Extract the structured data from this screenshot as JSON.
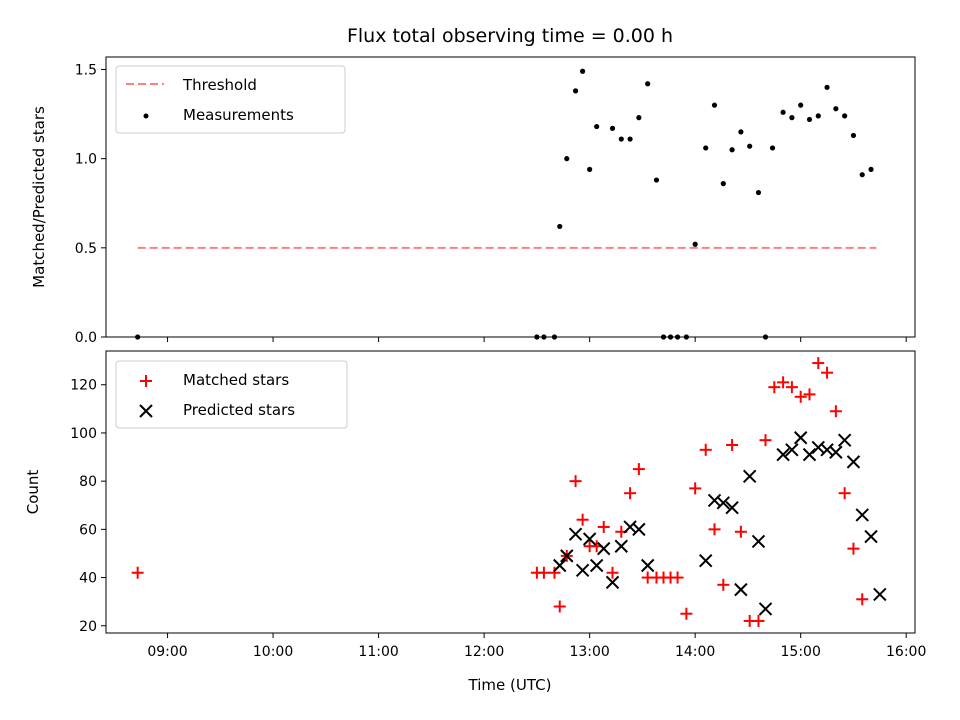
{
  "chart_data": [
    {
      "type": "scatter",
      "title": "Flux total observing time = 0.00 h",
      "ylabel": "Matched/Predicted stars",
      "ylim": [
        0,
        1.57
      ],
      "yticks": [
        0.0,
        0.5,
        1.0,
        1.5
      ],
      "ytick_labels": [
        "0.0",
        "0.5",
        "1.0",
        "1.5"
      ],
      "xlim": [
        "08:25",
        "16:05"
      ],
      "legend": {
        "placement": "top-left",
        "entries": [
          "Threshold",
          "Measurements"
        ]
      },
      "threshold": {
        "name": "Threshold",
        "value": 0.5,
        "x_start": "08:43",
        "x_end": "15:43",
        "color": "#ff7f7f",
        "style": "dashed"
      },
      "series": [
        {
          "name": "Measurements",
          "color": "#000000",
          "marker": "dot",
          "points": [
            [
              "08:43",
              0.0
            ],
            [
              "12:30",
              0.0
            ],
            [
              "12:34",
              0.0
            ],
            [
              "12:40",
              0.0
            ],
            [
              "12:43",
              0.62
            ],
            [
              "12:47",
              1.0
            ],
            [
              "12:52",
              1.38
            ],
            [
              "12:56",
              1.49
            ],
            [
              "13:00",
              0.94
            ],
            [
              "13:04",
              1.18
            ],
            [
              "13:13",
              1.17
            ],
            [
              "13:18",
              1.11
            ],
            [
              "13:23",
              1.11
            ],
            [
              "13:28",
              1.23
            ],
            [
              "13:33",
              1.42
            ],
            [
              "13:38",
              0.88
            ],
            [
              "13:42",
              0.0
            ],
            [
              "13:46",
              0.0
            ],
            [
              "13:50",
              0.0
            ],
            [
              "13:55",
              0.0
            ],
            [
              "14:00",
              0.52
            ],
            [
              "14:06",
              1.06
            ],
            [
              "14:11",
              1.3
            ],
            [
              "14:16",
              0.86
            ],
            [
              "14:21",
              1.05
            ],
            [
              "14:26",
              1.15
            ],
            [
              "14:31",
              1.07
            ],
            [
              "14:36",
              0.81
            ],
            [
              "14:40",
              0.0
            ],
            [
              "14:44",
              1.06
            ],
            [
              "14:50",
              1.26
            ],
            [
              "14:55",
              1.23
            ],
            [
              "15:00",
              1.3
            ],
            [
              "15:05",
              1.22
            ],
            [
              "15:10",
              1.24
            ],
            [
              "15:15",
              1.4
            ],
            [
              "15:20",
              1.28
            ],
            [
              "15:25",
              1.24
            ],
            [
              "15:30",
              1.13
            ],
            [
              "15:35",
              0.91
            ],
            [
              "15:40",
              0.94
            ]
          ]
        }
      ]
    },
    {
      "type": "scatter",
      "xlabel": "Time (UTC)",
      "ylabel": "Count",
      "ylim": [
        17,
        134
      ],
      "yticks": [
        20,
        40,
        60,
        80,
        100,
        120
      ],
      "ytick_labels": [
        "20",
        "40",
        "60",
        "80",
        "100",
        "120"
      ],
      "xlim": [
        "08:25",
        "16:05"
      ],
      "xticks": [
        "09:00",
        "10:00",
        "11:00",
        "12:00",
        "13:00",
        "14:00",
        "15:00",
        "16:00"
      ],
      "legend": {
        "placement": "top-left",
        "entries": [
          "Matched stars",
          "Predicted stars"
        ]
      },
      "series": [
        {
          "name": "Matched stars",
          "color": "#ff0000",
          "marker": "plus",
          "points": [
            [
              "08:43",
              42
            ],
            [
              "12:30",
              42
            ],
            [
              "12:34",
              42
            ],
            [
              "12:40",
              42
            ],
            [
              "12:43",
              28
            ],
            [
              "12:47",
              49
            ],
            [
              "12:52",
              80
            ],
            [
              "12:56",
              64
            ],
            [
              "13:00",
              53
            ],
            [
              "13:04",
              53
            ],
            [
              "13:08",
              61
            ],
            [
              "13:13",
              42
            ],
            [
              "13:18",
              59
            ],
            [
              "13:23",
              75
            ],
            [
              "13:28",
              85
            ],
            [
              "13:33",
              40
            ],
            [
              "13:38",
              40
            ],
            [
              "13:42",
              40
            ],
            [
              "13:46",
              40
            ],
            [
              "13:50",
              40
            ],
            [
              "13:55",
              25
            ],
            [
              "14:00",
              77
            ],
            [
              "14:06",
              93
            ],
            [
              "14:11",
              60
            ],
            [
              "14:16",
              37
            ],
            [
              "14:21",
              95
            ],
            [
              "14:26",
              59
            ],
            [
              "14:31",
              22
            ],
            [
              "14:36",
              22
            ],
            [
              "14:40",
              97
            ],
            [
              "14:45",
              119
            ],
            [
              "14:50",
              121
            ],
            [
              "14:55",
              119
            ],
            [
              "15:00",
              115
            ],
            [
              "15:05",
              116
            ],
            [
              "15:10",
              129
            ],
            [
              "15:15",
              125
            ],
            [
              "15:20",
              109
            ],
            [
              "15:25",
              75
            ],
            [
              "15:30",
              52
            ],
            [
              "15:35",
              31
            ]
          ]
        },
        {
          "name": "Predicted stars",
          "color": "#000000",
          "marker": "x",
          "points": [
            [
              "12:43",
              45
            ],
            [
              "12:47",
              49
            ],
            [
              "12:52",
              58
            ],
            [
              "12:56",
              43
            ],
            [
              "13:00",
              56
            ],
            [
              "13:04",
              45
            ],
            [
              "13:08",
              52
            ],
            [
              "13:13",
              38
            ],
            [
              "13:18",
              53
            ],
            [
              "13:23",
              61
            ],
            [
              "13:28",
              60
            ],
            [
              "13:33",
              45
            ],
            [
              "14:06",
              47
            ],
            [
              "14:11",
              72
            ],
            [
              "14:16",
              71
            ],
            [
              "14:21",
              69
            ],
            [
              "14:26",
              35
            ],
            [
              "14:31",
              82
            ],
            [
              "14:36",
              55
            ],
            [
              "14:40",
              27
            ],
            [
              "14:50",
              91
            ],
            [
              "14:55",
              93
            ],
            [
              "15:00",
              98
            ],
            [
              "15:05",
              91
            ],
            [
              "15:10",
              94
            ],
            [
              "15:15",
              93
            ],
            [
              "15:20",
              92
            ],
            [
              "15:25",
              97
            ],
            [
              "15:30",
              88
            ],
            [
              "15:35",
              66
            ],
            [
              "15:40",
              57
            ],
            [
              "15:45",
              33
            ]
          ]
        }
      ]
    }
  ]
}
